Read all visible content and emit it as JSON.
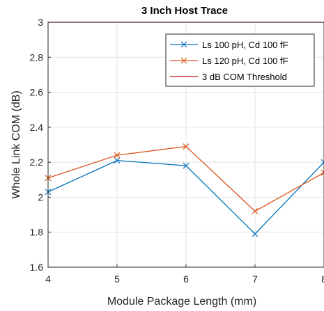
{
  "chart_data": {
    "type": "line",
    "title": "3 Inch Host Trace",
    "xlabel": "Module Package Length (mm)",
    "ylabel": "Whole Link COM (dB)",
    "xlim": [
      4,
      8
    ],
    "ylim": [
      1.6,
      3.0
    ],
    "xticks": [
      4,
      5,
      6,
      7,
      8
    ],
    "yticks": [
      1.6,
      1.8,
      2.0,
      2.2,
      2.4,
      2.6,
      2.8,
      3.0
    ],
    "xtick_labels": [
      "4",
      "5",
      "6",
      "7",
      "8"
    ],
    "ytick_labels": [
      "1.6",
      "1.8",
      "2",
      "2.2",
      "2.4",
      "2.6",
      "2.8",
      "3"
    ],
    "grid": true,
    "legend_position": "top-right",
    "series": [
      {
        "name": "Ls 100 pH, Cd 100 fF",
        "color": "#0072BD",
        "marker": "x",
        "x": [
          4,
          5,
          6,
          7,
          8
        ],
        "values": [
          2.03,
          2.21,
          2.18,
          1.79,
          2.2
        ]
      },
      {
        "name": "Ls 120 pH, Cd 100 fF",
        "color": "#D95319",
        "marker": "x",
        "x": [
          4,
          5,
          6,
          7,
          8
        ],
        "values": [
          2.11,
          2.24,
          2.29,
          1.92,
          2.14
        ]
      },
      {
        "name": "3 dB COM Threshold",
        "color": "#C0121E",
        "marker": "none",
        "x": [
          4,
          8
        ],
        "values": [
          3.0,
          3.0
        ]
      }
    ]
  }
}
